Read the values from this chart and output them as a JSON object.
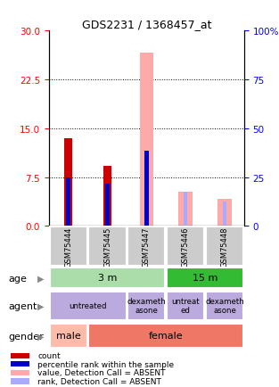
{
  "title": "GDS2231 / 1368457_at",
  "samples": [
    "GSM75444",
    "GSM75445",
    "GSM75447",
    "GSM75446",
    "GSM75448"
  ],
  "ylim_left": [
    0,
    30
  ],
  "ylim_right": [
    0,
    100
  ],
  "yticks_left": [
    0,
    7.5,
    15,
    22.5,
    30
  ],
  "yticks_right": [
    0,
    25,
    50,
    75,
    100
  ],
  "count_values": [
    13.5,
    9.2,
    0.0,
    0.0,
    0.0
  ],
  "pct_rank_values": [
    7.5,
    6.5,
    11.5,
    0.0,
    0.0
  ],
  "value_absent": [
    0.0,
    0.0,
    26.5,
    5.2,
    4.2
  ],
  "rank_absent": [
    0.0,
    0.0,
    11.5,
    5.2,
    3.8
  ],
  "color_count": "#cc0000",
  "color_pct_rank": "#0000cc",
  "color_value_absent": "#ffaaaa",
  "color_rank_absent": "#aaaaff",
  "age_color_light": "#aaddaa",
  "age_color_dark": "#33bb33",
  "agent_color": "#bbaadd",
  "gender_color_male": "#ffbbaa",
  "gender_color_female": "#ee7766",
  "sample_bg_color": "#cccccc",
  "legend_items": [
    {
      "color": "#cc0000",
      "label": "count"
    },
    {
      "color": "#0000cc",
      "label": "percentile rank within the sample"
    },
    {
      "color": "#ffaaaa",
      "label": "value, Detection Call = ABSENT"
    },
    {
      "color": "#aaaaff",
      "label": "rank, Detection Call = ABSENT"
    }
  ]
}
